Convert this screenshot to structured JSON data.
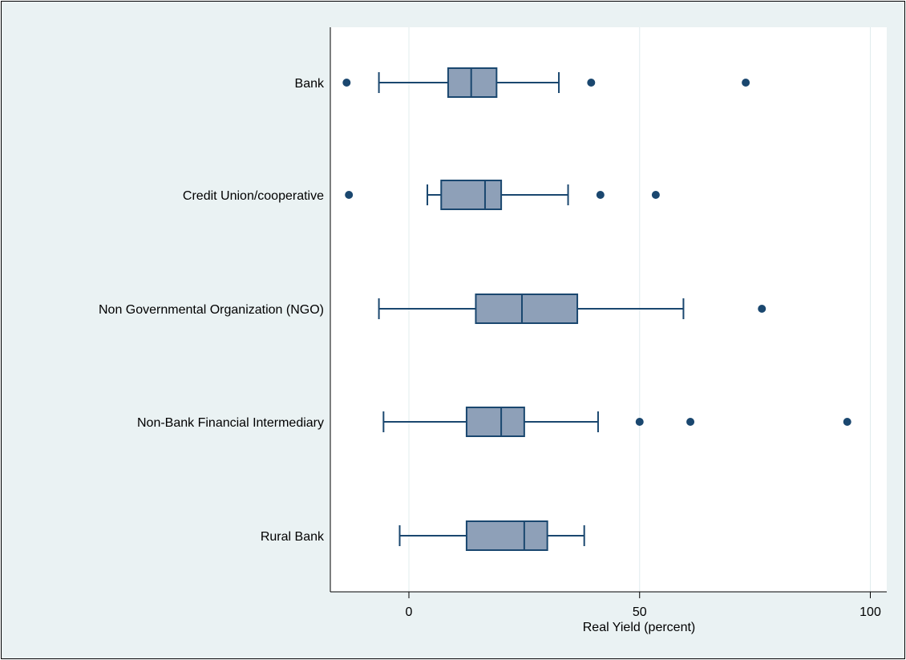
{
  "chart_data": {
    "type": "boxplot",
    "orientation": "horizontal",
    "title": "",
    "xlabel": "Real Yield (percent)",
    "ylabel": "",
    "xlim": [
      -17,
      102
    ],
    "xticks": [
      0,
      50,
      100
    ],
    "xtick_labels": [
      "0",
      "50",
      "100"
    ],
    "grid": true,
    "legend": "none",
    "colors": {
      "plot_background": "#ffffff",
      "outer_background": "#eaf2f3",
      "box_fill": "#8ea0b8",
      "stroke": "#1a476f",
      "gridline": "#e0ecee"
    },
    "categories": [
      "Bank",
      "Credit Union/cooperative",
      "Non Governmental Organization (NGO)",
      "Non-Bank Financial Intermediary",
      "Rural Bank"
    ],
    "boxes": [
      {
        "category": "Bank",
        "whisker_low": -6.5,
        "q1": 8.5,
        "median": 13.5,
        "q3": 19,
        "whisker_high": 32.5,
        "outliers": [
          -13.5,
          39.5,
          73
        ]
      },
      {
        "category": "Credit Union/cooperative",
        "whisker_low": 4,
        "q1": 7,
        "median": 16.5,
        "q3": 20,
        "whisker_high": 34.5,
        "outliers": [
          -13,
          41.5,
          53.5
        ]
      },
      {
        "category": "Non Governmental Organization (NGO)",
        "whisker_low": -6.5,
        "q1": 14.5,
        "median": 24.5,
        "q3": 36.5,
        "whisker_high": 59.5,
        "outliers": [
          76.5
        ]
      },
      {
        "category": "Non-Bank Financial Intermediary",
        "whisker_low": -5.5,
        "q1": 12.5,
        "median": 20,
        "q3": 25,
        "whisker_high": 41,
        "outliers": [
          50,
          61,
          95
        ]
      },
      {
        "category": "Rural Bank",
        "whisker_low": -2,
        "q1": 12.5,
        "median": 25,
        "q3": 30,
        "whisker_high": 38,
        "outliers": []
      }
    ]
  }
}
